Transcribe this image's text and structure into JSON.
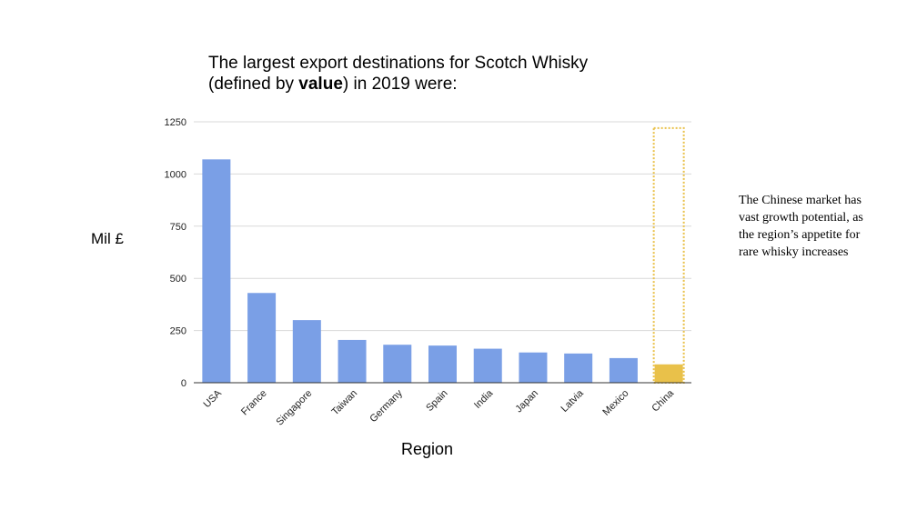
{
  "title": {
    "line1": "The largest export destinations for Scotch Whisky",
    "line2_prefix": "(defined by ",
    "line2_bold": "value",
    "line2_suffix": ") in 2019 were:"
  },
  "annotation": "The Chinese market has vast growth potential, as the region’s appetite for rare whisky increases",
  "colors": {
    "bar": "#7a9fe6",
    "highlight_bar": "#e9c14a",
    "highlight_box": "#e9c14a",
    "gridline": "#d9d9d9",
    "axis": "#333333"
  },
  "chart_data": {
    "type": "bar",
    "title": "The largest export destinations for Scotch Whisky (defined by value) in 2019 were:",
    "xlabel": "Region",
    "ylabel": "Mil £",
    "categories": [
      "USA",
      "France",
      "Singapore",
      "Taiwan",
      "Germany",
      "Spain",
      "India",
      "Japan",
      "Latvia",
      "Mexico",
      "China"
    ],
    "values": [
      1070,
      430,
      300,
      205,
      182,
      178,
      163,
      145,
      140,
      118,
      88
    ],
    "highlight_category": "China",
    "highlight_extent": 1220,
    "ylim": [
      0,
      1250
    ],
    "yticks": [
      0,
      250,
      500,
      750,
      1000,
      1250
    ],
    "grid": true,
    "legend": "none"
  }
}
